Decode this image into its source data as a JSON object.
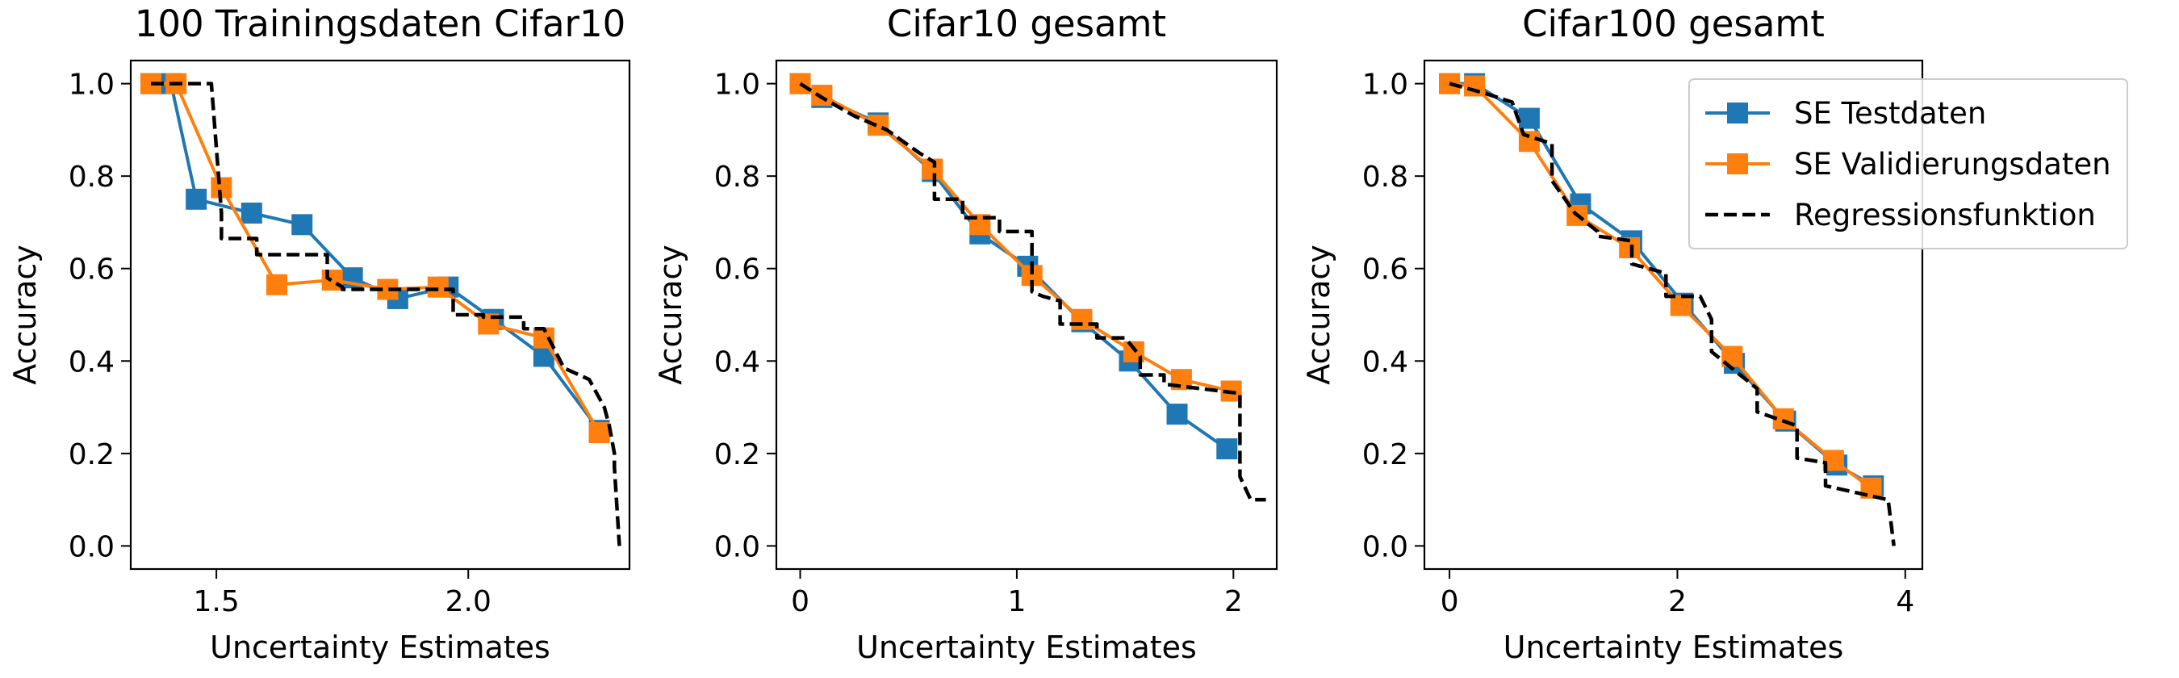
{
  "legend": {
    "placement": "upper-right (outside third panel)",
    "entries": [
      {
        "label": "SE Testdaten",
        "color": "#1f77b4",
        "style": "line-square"
      },
      {
        "label": "SE Validierungsdaten",
        "color": "#ff7f0e",
        "style": "line-square"
      },
      {
        "label": "Regressionsfunktion",
        "color": "#000000",
        "style": "dashed"
      }
    ]
  },
  "chart_data": [
    {
      "type": "line",
      "title": "100 Trainingsdaten Cifar10",
      "xlabel": "Uncertainty Estimates",
      "ylabel": "Accuracy",
      "xlim": [
        1.33,
        2.32
      ],
      "ylim": [
        -0.05,
        1.05
      ],
      "xticks": [
        1.5,
        2.0
      ],
      "xtick_labels": [
        "1.5",
        "2.0"
      ],
      "yticks": [
        0.0,
        0.2,
        0.4,
        0.6,
        0.8,
        1.0
      ],
      "ytick_labels": [
        "0.0",
        "0.2",
        "0.4",
        "0.6",
        "0.8",
        "1.0"
      ],
      "grid": false,
      "series": [
        {
          "name": "SE Testdaten",
          "color": "#1f77b4",
          "marker": "square",
          "dashed": false,
          "x": [
            1.37,
            1.41,
            1.46,
            1.57,
            1.67,
            1.77,
            1.86,
            1.96,
            2.05,
            2.15,
            2.26
          ],
          "y": [
            1.0,
            1.0,
            0.75,
            0.72,
            0.695,
            0.58,
            0.535,
            0.56,
            0.49,
            0.41,
            0.25
          ]
        },
        {
          "name": "SE Validierungsdaten",
          "color": "#ff7f0e",
          "marker": "square",
          "dashed": false,
          "x": [
            1.37,
            1.42,
            1.51,
            1.62,
            1.73,
            1.84,
            1.94,
            2.04,
            2.15,
            2.26
          ],
          "y": [
            1.0,
            1.0,
            0.775,
            0.565,
            0.575,
            0.555,
            0.56,
            0.48,
            0.45,
            0.245
          ]
        },
        {
          "name": "Regressionsfunktion",
          "color": "#000000",
          "marker": "none",
          "dashed": true,
          "x": [
            1.37,
            1.49,
            1.51,
            1.51,
            1.58,
            1.58,
            1.72,
            1.72,
            1.75,
            1.75,
            1.97,
            1.97,
            2.03,
            2.03,
            2.11,
            2.11,
            2.15,
            2.19,
            2.24,
            2.27,
            2.28,
            2.29,
            2.29,
            2.3
          ],
          "y": [
            1.0,
            1.0,
            0.72,
            0.665,
            0.665,
            0.63,
            0.63,
            0.58,
            0.56,
            0.555,
            0.555,
            0.5,
            0.5,
            0.495,
            0.495,
            0.47,
            0.47,
            0.385,
            0.36,
            0.3,
            0.26,
            0.2,
            0.17,
            0.0
          ]
        }
      ]
    },
    {
      "type": "line",
      "title": "Cifar10 gesamt",
      "xlabel": "Uncertainty Estimates",
      "ylabel": "Accuracy",
      "xlim": [
        -0.11,
        2.2
      ],
      "ylim": [
        -0.05,
        1.05
      ],
      "xticks": [
        0,
        1,
        2
      ],
      "xtick_labels": [
        "0",
        "1",
        "2"
      ],
      "yticks": [
        0.0,
        0.2,
        0.4,
        0.6,
        0.8,
        1.0
      ],
      "ytick_labels": [
        "0.0",
        "0.2",
        "0.4",
        "0.6",
        "0.8",
        "1.0"
      ],
      "grid": false,
      "series": [
        {
          "name": "SE Testdaten",
          "color": "#1f77b4",
          "marker": "square",
          "dashed": false,
          "x": [
            0.0,
            0.1,
            0.36,
            0.61,
            0.83,
            1.05,
            1.3,
            1.52,
            1.74,
            1.97
          ],
          "y": [
            1.0,
            0.97,
            0.915,
            0.81,
            0.675,
            0.605,
            0.485,
            0.4,
            0.285,
            0.21
          ]
        },
        {
          "name": "SE Validierungsdaten",
          "color": "#ff7f0e",
          "marker": "square",
          "dashed": false,
          "x": [
            0.0,
            0.1,
            0.36,
            0.61,
            0.83,
            1.07,
            1.3,
            1.54,
            1.76,
            1.99
          ],
          "y": [
            1.0,
            0.975,
            0.91,
            0.815,
            0.695,
            0.585,
            0.49,
            0.42,
            0.36,
            0.335
          ]
        },
        {
          "name": "Regressionsfunktion",
          "color": "#000000",
          "marker": "none",
          "dashed": true,
          "x": [
            0.0,
            0.1,
            0.25,
            0.4,
            0.55,
            0.62,
            0.62,
            0.75,
            0.75,
            0.92,
            0.92,
            1.07,
            1.07,
            1.12,
            1.2,
            1.2,
            1.37,
            1.37,
            1.5,
            1.57,
            1.57,
            1.68,
            1.68,
            2.03,
            2.03,
            2.08,
            2.15
          ],
          "y": [
            1.0,
            0.97,
            0.93,
            0.9,
            0.85,
            0.83,
            0.75,
            0.75,
            0.71,
            0.71,
            0.68,
            0.68,
            0.55,
            0.54,
            0.53,
            0.48,
            0.48,
            0.45,
            0.45,
            0.41,
            0.37,
            0.37,
            0.35,
            0.33,
            0.15,
            0.1,
            0.1
          ]
        }
      ]
    },
    {
      "type": "line",
      "title": "Cifar100 gesamt",
      "xlabel": "Uncertainty Estimates",
      "ylabel": "Accuracy",
      "xlim": [
        -0.22,
        4.15
      ],
      "ylim": [
        -0.05,
        1.05
      ],
      "xticks": [
        0,
        2,
        4
      ],
      "xtick_labels": [
        "0",
        "2",
        "4"
      ],
      "yticks": [
        0.0,
        0.2,
        0.4,
        0.6,
        0.8,
        1.0
      ],
      "ytick_labels": [
        "0.0",
        "0.2",
        "0.4",
        "0.6",
        "0.8",
        "1.0"
      ],
      "grid": false,
      "series": [
        {
          "name": "SE Testdaten",
          "color": "#1f77b4",
          "marker": "square",
          "dashed": false,
          "x": [
            0.0,
            0.22,
            0.7,
            1.15,
            1.6,
            2.05,
            2.5,
            2.95,
            3.4,
            3.72
          ],
          "y": [
            1.0,
            1.0,
            0.925,
            0.74,
            0.66,
            0.525,
            0.395,
            0.27,
            0.175,
            0.13
          ]
        },
        {
          "name": "SE Validierungsdaten",
          "color": "#ff7f0e",
          "marker": "square",
          "dashed": false,
          "x": [
            0.0,
            0.22,
            0.7,
            1.12,
            1.58,
            2.03,
            2.48,
            2.93,
            3.37,
            3.7
          ],
          "y": [
            1.0,
            0.995,
            0.875,
            0.715,
            0.645,
            0.52,
            0.41,
            0.275,
            0.185,
            0.125
          ]
        },
        {
          "name": "Regressionsfunktion",
          "color": "#000000",
          "marker": "none",
          "dashed": true,
          "x": [
            0.0,
            0.3,
            0.55,
            0.65,
            0.9,
            0.9,
            1.1,
            1.3,
            1.3,
            1.6,
            1.6,
            1.9,
            1.9,
            2.2,
            2.3,
            2.3,
            2.7,
            2.7,
            3.05,
            3.05,
            3.3,
            3.3,
            3.85,
            3.9
          ],
          "y": [
            1.0,
            0.98,
            0.96,
            0.89,
            0.87,
            0.79,
            0.72,
            0.68,
            0.67,
            0.66,
            0.61,
            0.59,
            0.54,
            0.54,
            0.49,
            0.42,
            0.34,
            0.29,
            0.26,
            0.19,
            0.18,
            0.13,
            0.1,
            0.0
          ]
        }
      ]
    }
  ]
}
